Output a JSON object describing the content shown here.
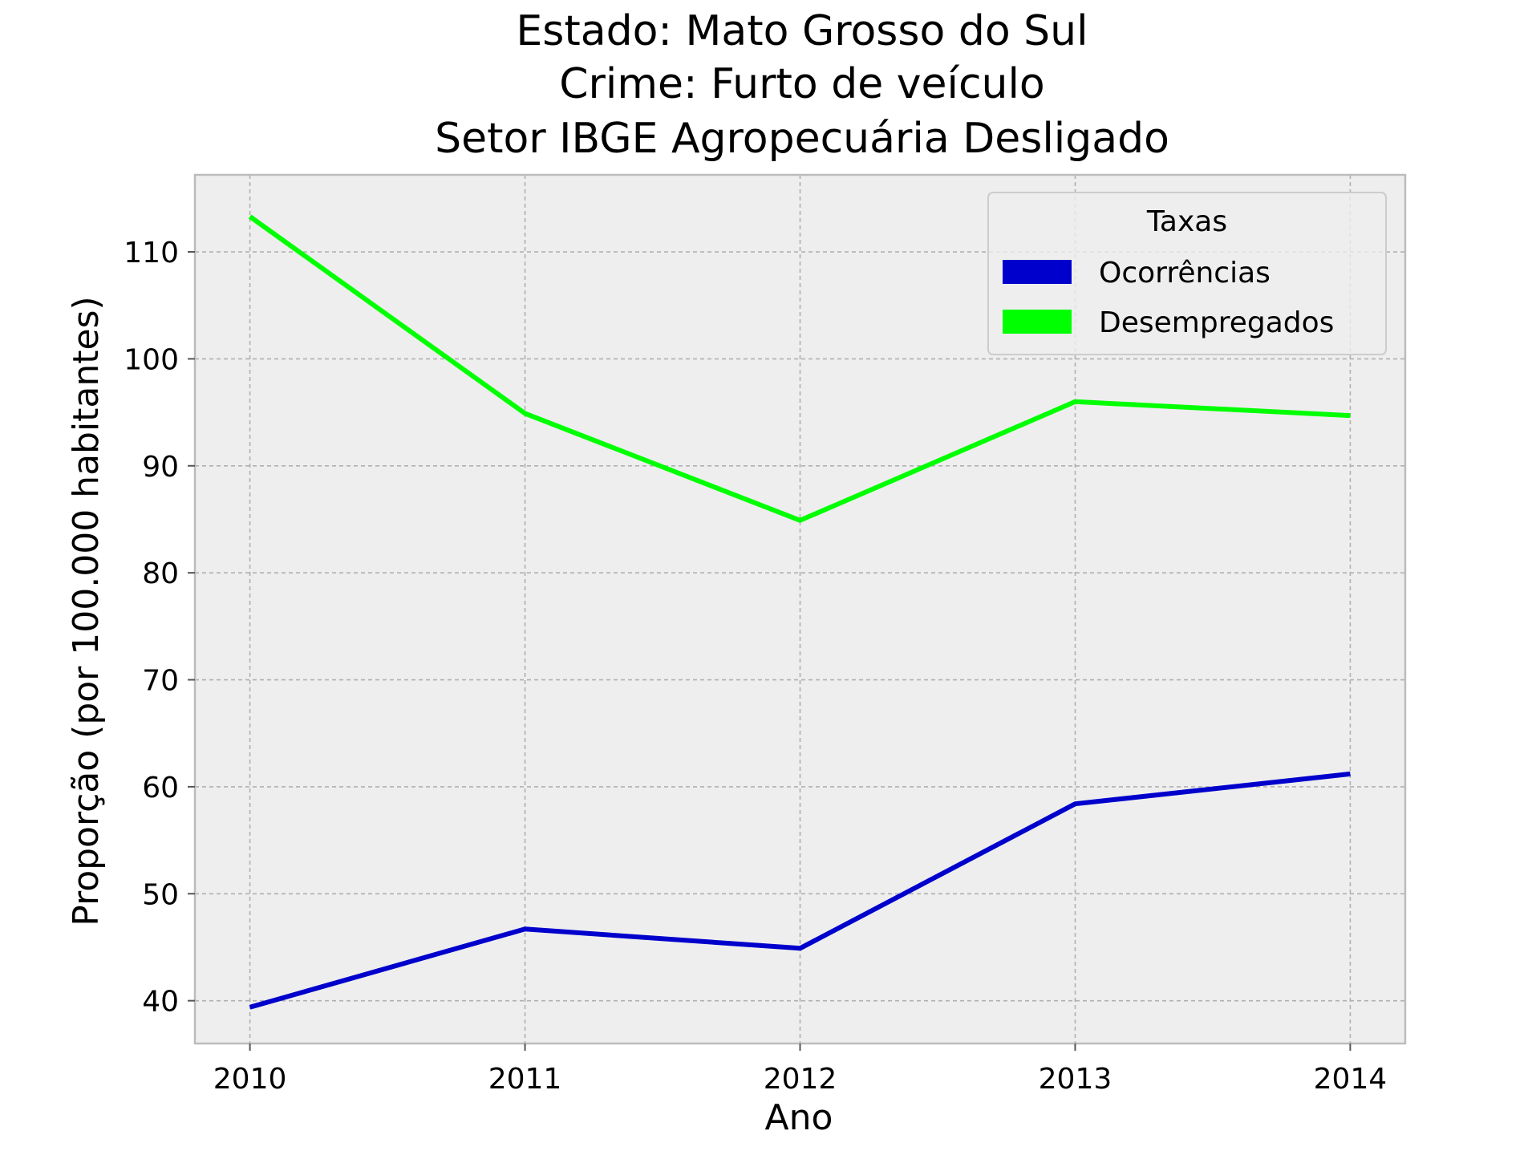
{
  "chart_data": {
    "type": "line",
    "title_lines": [
      "Estado: Mato Grosso do Sul",
      "Crime: Furto de veículo",
      "Setor IBGE  Agropecuária   Desligado"
    ],
    "xlabel": "Ano",
    "ylabel": "Proporção (por 100.000 habitantes)",
    "x": [
      2010,
      2011,
      2012,
      2013,
      2014
    ],
    "x_tick_labels": [
      "2010",
      "2011",
      "2012",
      "2013",
      "2014"
    ],
    "xlim": [
      2009.8,
      2014.2
    ],
    "ylim": [
      36,
      117.2
    ],
    "y_ticks": [
      40,
      50,
      60,
      70,
      80,
      90,
      100,
      110
    ],
    "y_tick_labels": [
      "40",
      "50",
      "60",
      "70",
      "80",
      "90",
      "100",
      "110"
    ],
    "grid": true,
    "legend": {
      "title": "Taxas",
      "placement": "top-right"
    },
    "series": [
      {
        "name": "Ocorrências",
        "color": "#0000cc",
        "values": [
          39.4,
          46.7,
          44.9,
          58.4,
          61.2
        ]
      },
      {
        "name": "Desempregados",
        "color": "#00ff00",
        "values": [
          113.3,
          94.9,
          84.9,
          96.0,
          94.7
        ]
      }
    ],
    "colors": {
      "plot_background": "#eeeeee",
      "axes_edge": "#bcbcbc"
    }
  }
}
